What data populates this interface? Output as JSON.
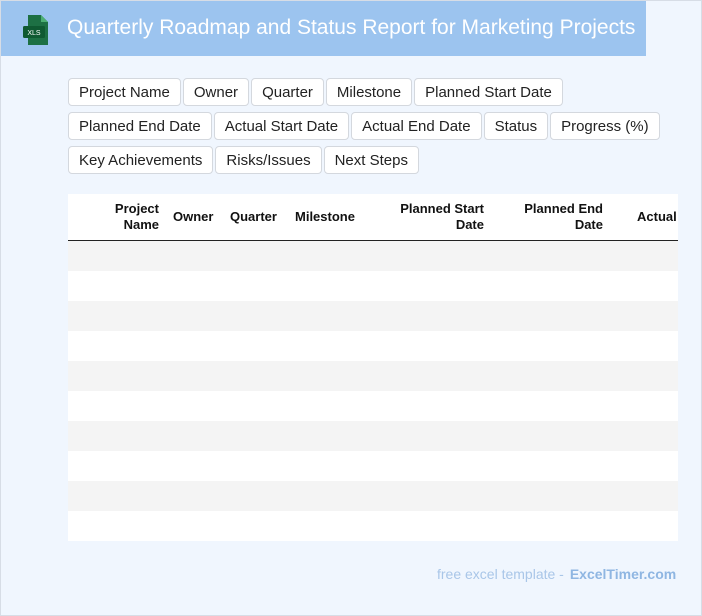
{
  "header": {
    "title": "Quarterly Roadmap and Status Report for Marketing Projects",
    "icon_label": "XLS"
  },
  "fields": [
    "Project Name",
    "Owner",
    "Quarter",
    "Milestone",
    "Planned Start Date",
    "Planned End Date",
    "Actual Start Date",
    "Actual End Date",
    "Status",
    "Progress (%)",
    "Key Achievements",
    "Risks/Issues",
    "Next Steps"
  ],
  "table": {
    "columns": [
      {
        "line1": "Project",
        "line2": "Name"
      },
      {
        "line1": "Owner",
        "line2": ""
      },
      {
        "line1": "Quarter",
        "line2": ""
      },
      {
        "line1": "Milestone",
        "line2": ""
      },
      {
        "line1": "Planned Start",
        "line2": "Date"
      },
      {
        "line1": "Planned End",
        "line2": "Date"
      },
      {
        "line1": "Actual",
        "line2": ""
      }
    ],
    "row_count": 10
  },
  "footer": {
    "text": "free excel template -",
    "brand": "ExcelTimer.com"
  },
  "colors": {
    "header_bg": "#9cc4ef",
    "page_bg": "#f0f6fe",
    "icon_green": "#1d7044"
  }
}
